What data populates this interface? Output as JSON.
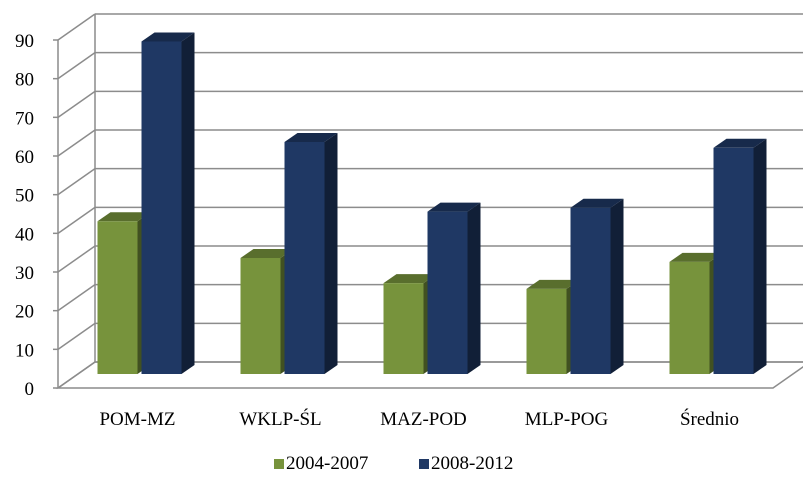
{
  "chart_data": {
    "type": "bar",
    "categories": [
      "POM-MZ",
      "WKLP-ŚL",
      "MAZ-POD",
      "MLP-POG",
      "Średnio"
    ],
    "series": [
      {
        "name": "2004-2007",
        "values": [
          39.5,
          30,
          23.5,
          22,
          29
        ]
      },
      {
        "name": "2008-2012",
        "values": [
          86,
          60,
          42,
          43,
          58.5
        ]
      }
    ],
    "ylim": [
      0,
      90
    ],
    "yticks": [
      "0",
      "10",
      "20",
      "30",
      "40",
      "50",
      "60",
      "70",
      "80",
      "90"
    ],
    "grid": true,
    "legend_position": "bottom",
    "colors": {
      "series_1": "#77933c",
      "series_2": "#1f3864",
      "gridline": "#8c8c8c"
    }
  }
}
